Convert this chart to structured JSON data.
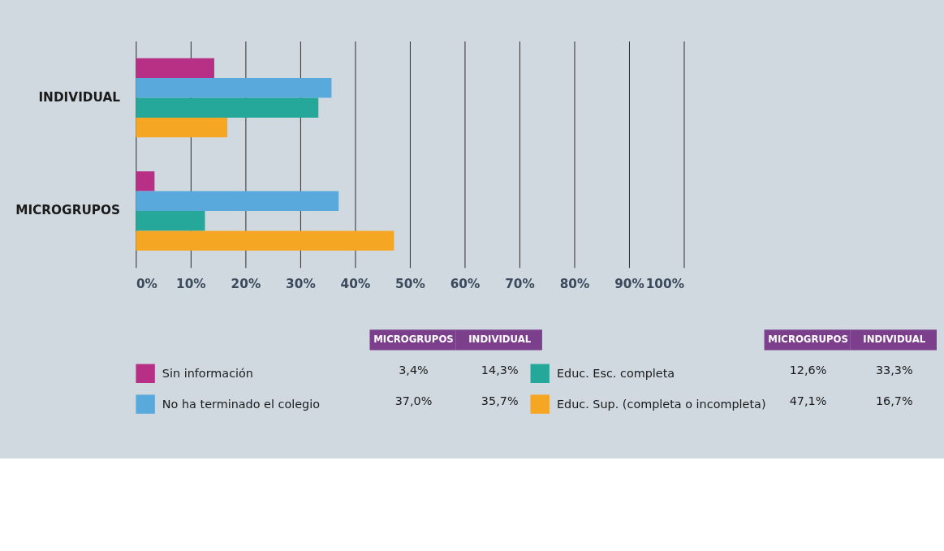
{
  "chart_data": {
    "type": "bar",
    "orientation": "horizontal",
    "categories": [
      "INDIVIDUAL",
      "MICROGRUPOS"
    ],
    "series": [
      {
        "name": "Sin información",
        "color": "#b82f86",
        "values": [
          14.3,
          3.4
        ]
      },
      {
        "name": "No ha terminado el colegio",
        "color": "#5aa9dc",
        "values": [
          35.7,
          37.0
        ]
      },
      {
        "name": "Educ. Esc. completa",
        "color": "#25a89a",
        "values": [
          33.3,
          12.6
        ]
      },
      {
        "name": "Educ. Sup. (completa o incompleta)",
        "color": "#f5a623",
        "values": [
          16.7,
          47.1
        ]
      }
    ],
    "annotations": [
      "3,4%",
      "14,3%",
      "37,0%",
      "35,7%",
      "12,6%",
      "33,3%",
      "47,1%",
      "16,7%"
    ],
    "xlim": [
      0,
      100
    ],
    "xticks": [
      {
        "value": 0,
        "label": "0%"
      },
      {
        "value": 10,
        "label": "10%"
      },
      {
        "value": 20,
        "label": "20%"
      },
      {
        "value": 30,
        "label": "30%"
      },
      {
        "value": 40,
        "label": "40%"
      },
      {
        "value": 50,
        "label": "50%"
      },
      {
        "value": 60,
        "label": "60%"
      },
      {
        "value": 70,
        "label": "70%"
      },
      {
        "value": 80,
        "label": "80%"
      },
      {
        "value": 90,
        "label": "90%"
      },
      {
        "value": 100,
        "label": "100%"
      }
    ],
    "grid": "x",
    "legend": "bottom"
  }
}
